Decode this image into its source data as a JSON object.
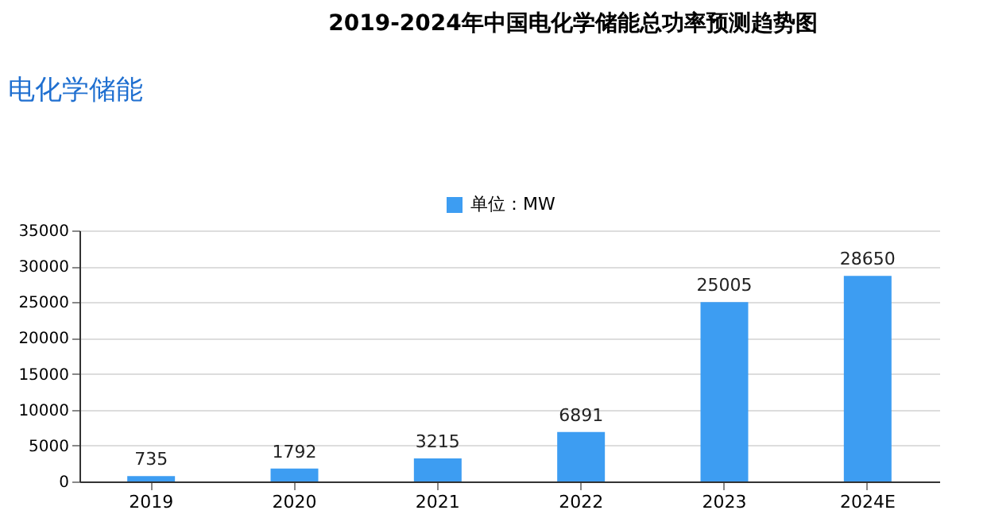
{
  "chart_data": {
    "type": "bar",
    "title": "2019-2024年中国电化学储能总功率预测趋势图",
    "annotations": [
      "电化学储能"
    ],
    "categories": [
      "2019",
      "2020",
      "2021",
      "2022",
      "2023",
      "2024E"
    ],
    "series": [
      {
        "name": "单位：MW",
        "color": "#3d9df2",
        "values": [
          735,
          1792,
          3215,
          6891,
          25005,
          28650
        ]
      }
    ],
    "ylim": [
      0,
      35000
    ],
    "yticks": [
      0,
      5000,
      10000,
      15000,
      20000,
      25000,
      30000,
      35000
    ],
    "grid": "y",
    "legend": "top",
    "data_labels": true
  }
}
